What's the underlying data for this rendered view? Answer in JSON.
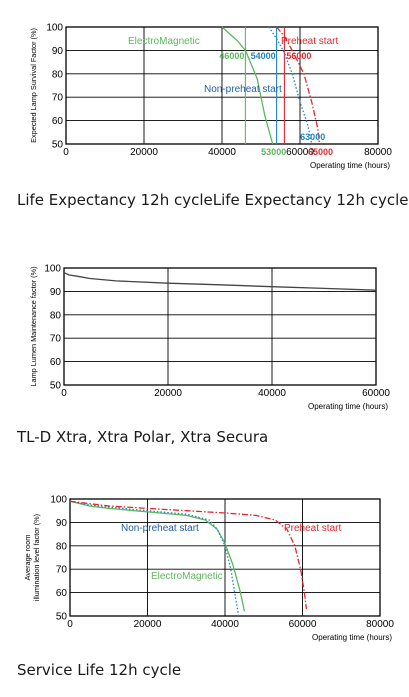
{
  "colors": {
    "green": "#5cb85c",
    "blue": "#1f86c8",
    "red": "#e0282e",
    "axis": "#000000",
    "curve_gray": "#444444",
    "navy": "#1f5fa8"
  },
  "captions": {
    "chart1": "Life Expectancy 12h cycleLife Expectancy 12h cycle",
    "chart2": "TL-D Xtra, Xtra Polar, Xtra Secura",
    "chart3": "Service Life 12h cycle"
  },
  "chart_data": [
    {
      "type": "line",
      "title": "",
      "xlabel": "Operating time (hours)",
      "ylabel": "Expected Lamp Survival Factor (%)",
      "xlim": [
        0,
        80000
      ],
      "ylim": [
        50,
        100
      ],
      "x_ticks": [
        "0",
        "20000",
        "40000",
        "60000",
        "80000"
      ],
      "y_ticks": [
        "50",
        "60",
        "70",
        "80",
        "90",
        "100"
      ],
      "grid": true,
      "series": [
        {
          "name": "ElectroMagnetic",
          "color": "#5cb85c",
          "style": "solid",
          "points": [
            [
              40000,
              100
            ],
            [
              44000,
              94
            ],
            [
              46000,
              90
            ],
            [
              49000,
              78
            ],
            [
              51000,
              62
            ],
            [
              53000,
              50
            ]
          ]
        },
        {
          "name": "Non-preheat start",
          "color": "#1f86c8",
          "style": "dotted",
          "points": [
            [
              52000,
              100
            ],
            [
              54000,
              95
            ],
            [
              56000,
              89
            ],
            [
              58000,
              80
            ],
            [
              60000,
              68
            ],
            [
              62000,
              58
            ],
            [
              63000,
              50
            ]
          ]
        },
        {
          "name": "Preheat start",
          "color": "#e0282e",
          "style": "dashdot",
          "points": [
            [
              54000,
              100
            ],
            [
              56000,
              96
            ],
            [
              58000,
              90
            ],
            [
              61000,
              80
            ],
            [
              63000,
              68
            ],
            [
              64500,
              57
            ],
            [
              65000,
              50
            ]
          ]
        }
      ],
      "vlines": [
        {
          "x": 46000,
          "color": "#5cb85c"
        },
        {
          "x": 54000,
          "color": "#1f86c8"
        },
        {
          "x": 56000,
          "color": "#e0282e"
        }
      ],
      "annotations": [
        "ElectroMagnetic",
        "Preheat start",
        "Non-preheat start",
        "46000",
        "54000",
        "56000",
        "53000",
        "63000",
        "65000"
      ]
    },
    {
      "type": "line",
      "title": "",
      "xlabel": "Operating time (hours)",
      "ylabel": "Lamp Lumen Maintenance factor (%)",
      "xlim": [
        0,
        60000
      ],
      "ylim": [
        50,
        100
      ],
      "x_ticks": [
        "0",
        "20000",
        "40000",
        "60000"
      ],
      "y_ticks": [
        "50",
        "60",
        "70",
        "80",
        "90",
        "100"
      ],
      "grid": true,
      "series": [
        {
          "name": "",
          "color": "#444444",
          "style": "solid",
          "points": [
            [
              0,
              98
            ],
            [
              1000,
              97
            ],
            [
              2500,
              96.5
            ],
            [
              5000,
              95.5
            ],
            [
              10000,
              94.5
            ],
            [
              20000,
              93.5
            ],
            [
              30000,
              92.8
            ],
            [
              40000,
              92
            ],
            [
              50000,
              91.3
            ],
            [
              60000,
              90.5
            ]
          ]
        }
      ]
    },
    {
      "type": "line",
      "title": "",
      "xlabel": "Operating time (hours)",
      "ylabel": "Average room illumination level factor (%)",
      "xlim": [
        0,
        80000
      ],
      "ylim": [
        50,
        100
      ],
      "x_ticks": [
        "0",
        "20000",
        "40000",
        "60000",
        "80000"
      ],
      "y_ticks": [
        "50",
        "60",
        "70",
        "80",
        "90",
        "100"
      ],
      "grid": true,
      "series": [
        {
          "name": "ElectroMagnetic",
          "color": "#5cb85c",
          "style": "solid",
          "points": [
            [
              0,
              99
            ],
            [
              5000,
              97
            ],
            [
              10000,
              96
            ],
            [
              20000,
              94.5
            ],
            [
              30000,
              93
            ],
            [
              35000,
              91
            ],
            [
              38000,
              87
            ],
            [
              40000,
              81
            ],
            [
              42000,
              72
            ],
            [
              44000,
              60
            ],
            [
              45000,
              52
            ]
          ]
        },
        {
          "name": "Non-preheat start",
          "color": "#1f86c8",
          "style": "dotted",
          "points": [
            [
              0,
              99
            ],
            [
              5000,
              97.5
            ],
            [
              10000,
              96.5
            ],
            [
              20000,
              95
            ],
            [
              30000,
              93.5
            ],
            [
              36000,
              91
            ],
            [
              38000,
              87
            ],
            [
              40000,
              80
            ],
            [
              41500,
              70
            ],
            [
              42500,
              60
            ],
            [
              43500,
              50
            ]
          ]
        },
        {
          "name": "Preheat start",
          "color": "#e0282e",
          "style": "dashdot",
          "points": [
            [
              0,
              99
            ],
            [
              10000,
              97
            ],
            [
              20000,
              96
            ],
            [
              30000,
              95
            ],
            [
              40000,
              94
            ],
            [
              48000,
              93
            ],
            [
              53000,
              91
            ],
            [
              56000,
              87
            ],
            [
              58000,
              80
            ],
            [
              59500,
              70
            ],
            [
              60500,
              60
            ],
            [
              61000,
              53
            ]
          ]
        }
      ],
      "annotations": [
        "Non-preheat start",
        "Preheat start",
        "ElectroMagnetic"
      ]
    }
  ]
}
